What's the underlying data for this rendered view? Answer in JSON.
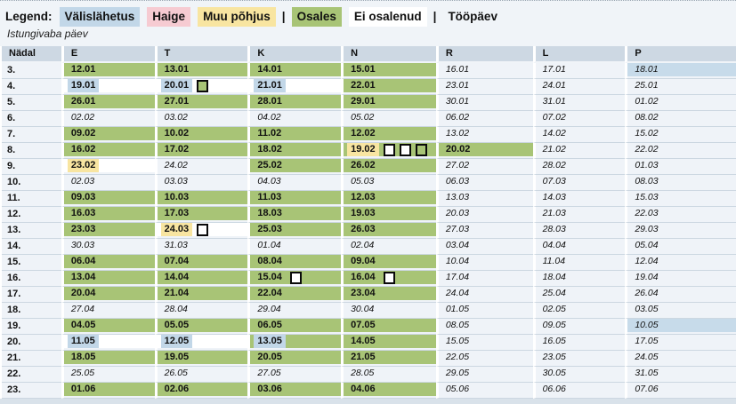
{
  "legend": {
    "label": "Legend:",
    "items": [
      {
        "label": "Välislähetus",
        "type": "valislahetus"
      },
      {
        "label": "Haige",
        "type": "haige"
      },
      {
        "label": "Muu põhjus",
        "type": "muu_pohjus"
      },
      {
        "label": "|",
        "type": "separator"
      },
      {
        "label": "Osales",
        "type": "osales"
      },
      {
        "label": "Ei osalenud",
        "type": "ei_osalenud"
      },
      {
        "label": "|",
        "type": "separator"
      },
      {
        "label": "Tööpäev",
        "type": "toopaev"
      }
    ],
    "second_line": "Istungivaba päev"
  },
  "colors": {
    "osales": "#a8c476",
    "ei_osalenud": "#ffffff",
    "valislahetus": "#c2d7e8",
    "haige": "#f6cbd2",
    "muu_pohjus": "#f8e5a1",
    "vaba_sinine": "#c7dbea"
  },
  "table": {
    "headers": [
      "Nädal",
      "E",
      "T",
      "K",
      "N",
      "R",
      "L",
      "P"
    ],
    "rows": [
      {
        "week": "3.",
        "days": [
          {
            "date": "12.01",
            "status": "osales"
          },
          {
            "date": "13.01",
            "status": "osales"
          },
          {
            "date": "14.01",
            "status": "osales"
          },
          {
            "date": "15.01",
            "status": "osales"
          },
          {
            "date": "16.01",
            "status": "vaba"
          },
          {
            "date": "17.01",
            "status": "vaba"
          },
          {
            "date": "18.01",
            "status": "vaba_sinine"
          }
        ]
      },
      {
        "week": "4.",
        "days": [
          {
            "date": "19.01",
            "status": "ei_osalenud",
            "mark": "valislahetus"
          },
          {
            "date": "20.01",
            "status": "ei_osalenud",
            "mark": "valislahetus",
            "boxes": [
              "green"
            ]
          },
          {
            "date": "21.01",
            "status": "ei_osalenud",
            "mark": "valislahetus"
          },
          {
            "date": "22.01",
            "status": "osales"
          },
          {
            "date": "23.01",
            "status": "vaba"
          },
          {
            "date": "24.01",
            "status": "vaba"
          },
          {
            "date": "25.01",
            "status": "vaba"
          }
        ]
      },
      {
        "week": "5.",
        "days": [
          {
            "date": "26.01",
            "status": "osales"
          },
          {
            "date": "27.01",
            "status": "osales"
          },
          {
            "date": "28.01",
            "status": "osales"
          },
          {
            "date": "29.01",
            "status": "osales"
          },
          {
            "date": "30.01",
            "status": "vaba"
          },
          {
            "date": "31.01",
            "status": "vaba"
          },
          {
            "date": "01.02",
            "status": "vaba"
          }
        ]
      },
      {
        "week": "6.",
        "days": [
          {
            "date": "02.02",
            "status": "vaba"
          },
          {
            "date": "03.02",
            "status": "vaba"
          },
          {
            "date": "04.02",
            "status": "vaba"
          },
          {
            "date": "05.02",
            "status": "vaba"
          },
          {
            "date": "06.02",
            "status": "vaba"
          },
          {
            "date": "07.02",
            "status": "vaba"
          },
          {
            "date": "08.02",
            "status": "vaba"
          }
        ]
      },
      {
        "week": "7.",
        "days": [
          {
            "date": "09.02",
            "status": "osales"
          },
          {
            "date": "10.02",
            "status": "osales"
          },
          {
            "date": "11.02",
            "status": "osales"
          },
          {
            "date": "12.02",
            "status": "osales"
          },
          {
            "date": "13.02",
            "status": "vaba"
          },
          {
            "date": "14.02",
            "status": "vaba"
          },
          {
            "date": "15.02",
            "status": "vaba"
          }
        ]
      },
      {
        "week": "8.",
        "days": [
          {
            "date": "16.02",
            "status": "osales"
          },
          {
            "date": "17.02",
            "status": "osales"
          },
          {
            "date": "18.02",
            "status": "osales"
          },
          {
            "date": "19.02",
            "status": "osales",
            "mark": "muu_pohjus",
            "boxes": [
              "white",
              "white",
              "green"
            ]
          },
          {
            "date": "20.02",
            "status": "osales"
          },
          {
            "date": "21.02",
            "status": "vaba"
          },
          {
            "date": "22.02",
            "status": "vaba"
          }
        ]
      },
      {
        "week": "9.",
        "days": [
          {
            "date": "23.02",
            "status": "ei_osalenud",
            "mark": "muu_pohjus"
          },
          {
            "date": "24.02",
            "status": "vaba"
          },
          {
            "date": "25.02",
            "status": "osales"
          },
          {
            "date": "26.02",
            "status": "osales"
          },
          {
            "date": "27.02",
            "status": "vaba"
          },
          {
            "date": "28.02",
            "status": "vaba"
          },
          {
            "date": "01.03",
            "status": "vaba"
          }
        ]
      },
      {
        "week": "10.",
        "days": [
          {
            "date": "02.03",
            "status": "vaba"
          },
          {
            "date": "03.03",
            "status": "vaba"
          },
          {
            "date": "04.03",
            "status": "vaba"
          },
          {
            "date": "05.03",
            "status": "vaba"
          },
          {
            "date": "06.03",
            "status": "vaba"
          },
          {
            "date": "07.03",
            "status": "vaba"
          },
          {
            "date": "08.03",
            "status": "vaba"
          }
        ]
      },
      {
        "week": "11.",
        "days": [
          {
            "date": "09.03",
            "status": "osales"
          },
          {
            "date": "10.03",
            "status": "osales"
          },
          {
            "date": "11.03",
            "status": "osales"
          },
          {
            "date": "12.03",
            "status": "osales"
          },
          {
            "date": "13.03",
            "status": "vaba"
          },
          {
            "date": "14.03",
            "status": "vaba"
          },
          {
            "date": "15.03",
            "status": "vaba"
          }
        ]
      },
      {
        "week": "12.",
        "days": [
          {
            "date": "16.03",
            "status": "osales"
          },
          {
            "date": "17.03",
            "status": "osales"
          },
          {
            "date": "18.03",
            "status": "osales"
          },
          {
            "date": "19.03",
            "status": "osales"
          },
          {
            "date": "20.03",
            "status": "vaba"
          },
          {
            "date": "21.03",
            "status": "vaba"
          },
          {
            "date": "22.03",
            "status": "vaba"
          }
        ]
      },
      {
        "week": "13.",
        "days": [
          {
            "date": "23.03",
            "status": "osales"
          },
          {
            "date": "24.03",
            "status": "ei_osalenud",
            "mark": "muu_pohjus",
            "boxes": [
              "white"
            ]
          },
          {
            "date": "25.03",
            "status": "osales"
          },
          {
            "date": "26.03",
            "status": "osales"
          },
          {
            "date": "27.03",
            "status": "vaba"
          },
          {
            "date": "28.03",
            "status": "vaba"
          },
          {
            "date": "29.03",
            "status": "vaba"
          }
        ]
      },
      {
        "week": "14.",
        "days": [
          {
            "date": "30.03",
            "status": "vaba"
          },
          {
            "date": "31.03",
            "status": "vaba"
          },
          {
            "date": "01.04",
            "status": "vaba"
          },
          {
            "date": "02.04",
            "status": "vaba"
          },
          {
            "date": "03.04",
            "status": "vaba"
          },
          {
            "date": "04.04",
            "status": "vaba"
          },
          {
            "date": "05.04",
            "status": "vaba"
          }
        ]
      },
      {
        "week": "15.",
        "days": [
          {
            "date": "06.04",
            "status": "osales"
          },
          {
            "date": "07.04",
            "status": "osales"
          },
          {
            "date": "08.04",
            "status": "osales"
          },
          {
            "date": "09.04",
            "status": "osales"
          },
          {
            "date": "10.04",
            "status": "vaba"
          },
          {
            "date": "11.04",
            "status": "vaba"
          },
          {
            "date": "12.04",
            "status": "vaba"
          }
        ]
      },
      {
        "week": "16.",
        "days": [
          {
            "date": "13.04",
            "status": "osales"
          },
          {
            "date": "14.04",
            "status": "osales"
          },
          {
            "date": "15.04",
            "status": "osales",
            "boxes": [
              "white"
            ]
          },
          {
            "date": "16.04",
            "status": "osales",
            "boxes": [
              "white"
            ]
          },
          {
            "date": "17.04",
            "status": "vaba"
          },
          {
            "date": "18.04",
            "status": "vaba"
          },
          {
            "date": "19.04",
            "status": "vaba"
          }
        ]
      },
      {
        "week": "17.",
        "days": [
          {
            "date": "20.04",
            "status": "osales"
          },
          {
            "date": "21.04",
            "status": "osales"
          },
          {
            "date": "22.04",
            "status": "osales"
          },
          {
            "date": "23.04",
            "status": "osales"
          },
          {
            "date": "24.04",
            "status": "vaba"
          },
          {
            "date": "25.04",
            "status": "vaba"
          },
          {
            "date": "26.04",
            "status": "vaba"
          }
        ]
      },
      {
        "week": "18.",
        "days": [
          {
            "date": "27.04",
            "status": "vaba"
          },
          {
            "date": "28.04",
            "status": "vaba"
          },
          {
            "date": "29.04",
            "status": "vaba"
          },
          {
            "date": "30.04",
            "status": "vaba"
          },
          {
            "date": "01.05",
            "status": "vaba"
          },
          {
            "date": "02.05",
            "status": "vaba"
          },
          {
            "date": "03.05",
            "status": "vaba"
          }
        ]
      },
      {
        "week": "19.",
        "days": [
          {
            "date": "04.05",
            "status": "osales"
          },
          {
            "date": "05.05",
            "status": "osales"
          },
          {
            "date": "06.05",
            "status": "osales"
          },
          {
            "date": "07.05",
            "status": "osales"
          },
          {
            "date": "08.05",
            "status": "vaba"
          },
          {
            "date": "09.05",
            "status": "vaba"
          },
          {
            "date": "10.05",
            "status": "vaba_sinine"
          }
        ]
      },
      {
        "week": "20.",
        "days": [
          {
            "date": "11.05",
            "status": "ei_osalenud",
            "mark": "valislahetus"
          },
          {
            "date": "12.05",
            "status": "ei_osalenud",
            "mark": "valislahetus"
          },
          {
            "date": "13.05",
            "status": "osales",
            "mark": "valislahetus"
          },
          {
            "date": "14.05",
            "status": "osales"
          },
          {
            "date": "15.05",
            "status": "vaba"
          },
          {
            "date": "16.05",
            "status": "vaba"
          },
          {
            "date": "17.05",
            "status": "vaba"
          }
        ]
      },
      {
        "week": "21.",
        "days": [
          {
            "date": "18.05",
            "status": "osales"
          },
          {
            "date": "19.05",
            "status": "osales"
          },
          {
            "date": "20.05",
            "status": "osales"
          },
          {
            "date": "21.05",
            "status": "osales"
          },
          {
            "date": "22.05",
            "status": "vaba"
          },
          {
            "date": "23.05",
            "status": "vaba"
          },
          {
            "date": "24.05",
            "status": "vaba"
          }
        ]
      },
      {
        "week": "22.",
        "days": [
          {
            "date": "25.05",
            "status": "vaba"
          },
          {
            "date": "26.05",
            "status": "vaba"
          },
          {
            "date": "27.05",
            "status": "vaba"
          },
          {
            "date": "28.05",
            "status": "vaba"
          },
          {
            "date": "29.05",
            "status": "vaba"
          },
          {
            "date": "30.05",
            "status": "vaba"
          },
          {
            "date": "31.05",
            "status": "vaba"
          }
        ]
      },
      {
        "week": "23.",
        "days": [
          {
            "date": "01.06",
            "status": "osales"
          },
          {
            "date": "02.06",
            "status": "osales"
          },
          {
            "date": "03.06",
            "status": "osales"
          },
          {
            "date": "04.06",
            "status": "osales"
          },
          {
            "date": "05.06",
            "status": "vaba"
          },
          {
            "date": "06.06",
            "status": "vaba"
          },
          {
            "date": "07.06",
            "status": "vaba"
          }
        ]
      }
    ]
  }
}
